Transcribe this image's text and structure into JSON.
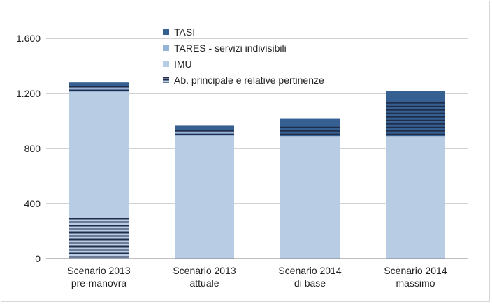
{
  "chart_data": {
    "type": "bar",
    "stacked": true,
    "categories": [
      [
        "Scenario 2013",
        "pre-manovra"
      ],
      [
        "Scenario 2013",
        "attuale"
      ],
      [
        "Scenario 2014",
        "di base"
      ],
      [
        "Scenario 2014",
        "massimo"
      ]
    ],
    "ylim": [
      0,
      1600
    ],
    "yticks": [
      0,
      400,
      800,
      1200,
      1600
    ],
    "ytick_labels": [
      "0",
      "400",
      "800",
      "1.200",
      "1.600"
    ],
    "grid": true,
    "legend_placement": "top-center",
    "series": [
      {
        "name": "IMU",
        "color": "#b8cce4",
        "values": [
          1210,
          890,
          890,
          890
        ]
      },
      {
        "name": "TARES - servizi indivisibili",
        "color": "#95b3d7",
        "values": [
          40,
          40,
          0,
          0
        ]
      },
      {
        "name": "TASI",
        "color": "#376092",
        "values": [
          30,
          40,
          130,
          330
        ]
      }
    ],
    "hatched_overlay": {
      "name": "Ab. principale e relative pertinenze",
      "color": "#1f2d4a",
      "ranges": [
        [
          [
            0,
            310
          ],
          [
            1210,
            1250
          ]
        ],
        [
          [
            0,
            10
          ],
          [
            890,
            930
          ]
        ],
        [
          [
            0,
            10
          ],
          [
            890,
            960
          ]
        ],
        [
          [
            0,
            10
          ],
          [
            890,
            1130
          ]
        ]
      ]
    },
    "legend_order": [
      "TASI",
      "TARES - servizi indivisibili",
      "IMU",
      "Ab. principale e relative pertinenze"
    ]
  }
}
